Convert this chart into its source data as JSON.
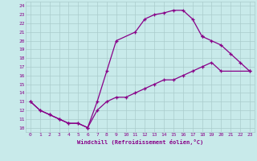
{
  "bg_color": "#c8eaea",
  "line_color": "#880088",
  "grid_color": "#aacccc",
  "xlabel": "Windchill (Refroidissement éolien,°C)",
  "xlabel_color": "#880088",
  "xlim": [
    -0.5,
    23.5
  ],
  "ylim": [
    9.5,
    24.5
  ],
  "xticks": [
    0,
    1,
    2,
    3,
    4,
    5,
    6,
    7,
    8,
    9,
    10,
    11,
    12,
    13,
    14,
    15,
    16,
    17,
    18,
    19,
    20,
    21,
    22,
    23
  ],
  "yticks": [
    10,
    11,
    12,
    13,
    14,
    15,
    16,
    17,
    18,
    19,
    20,
    21,
    22,
    23,
    24
  ],
  "line1_x": [
    0,
    1,
    2,
    3,
    4,
    5,
    6,
    7,
    8,
    9,
    11,
    12,
    13,
    14,
    15,
    16,
    17,
    18
  ],
  "line1_y": [
    13.0,
    12.0,
    11.5,
    11.0,
    10.5,
    10.5,
    10.0,
    13.0,
    16.5,
    20.0,
    21.0,
    22.5,
    23.0,
    23.2,
    23.5,
    23.5,
    22.5,
    20.5
  ],
  "line2_x": [
    18,
    19,
    20,
    21,
    22,
    23
  ],
  "line2_y": [
    20.5,
    20.0,
    19.5,
    18.5,
    17.5,
    16.5
  ],
  "line3_x": [
    0,
    1,
    2,
    3,
    4,
    5,
    6,
    7,
    8,
    9,
    10,
    11,
    12,
    13,
    14,
    15,
    16,
    17,
    18,
    19,
    20,
    23
  ],
  "line3_y": [
    13.0,
    12.0,
    11.5,
    11.0,
    10.5,
    10.5,
    10.0,
    12.0,
    13.0,
    13.5,
    13.5,
    14.0,
    14.5,
    15.0,
    15.5,
    15.5,
    16.0,
    16.5,
    17.0,
    17.5,
    16.5,
    16.5
  ]
}
